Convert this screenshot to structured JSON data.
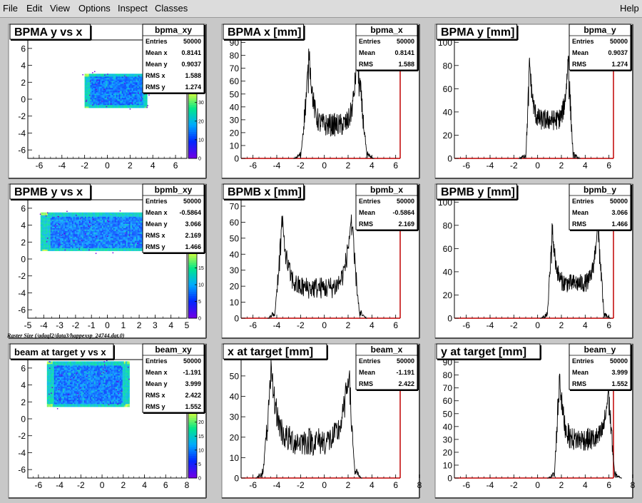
{
  "menu": {
    "items": [
      "File",
      "Edit",
      "View",
      "Options",
      "Inspect",
      "Classes"
    ],
    "help": "Help"
  },
  "caption": "Raster Size (/adaql2/data3/happexsp_24744.dat.0)",
  "colors": {
    "background": "#c8c8c8",
    "axis_red": "#c00000",
    "histogram": "#000000"
  },
  "chart_data": [
    {
      "id": "bpma_xy",
      "type": "heatmap",
      "title": "BPMA y vs x",
      "stats": {
        "name": "bpma_xy",
        "rows": [
          [
            "Entries",
            "50000"
          ],
          [
            "Mean x",
            "0.8141"
          ],
          [
            "Mean y",
            "0.9037"
          ],
          [
            "RMS x",
            "1.588"
          ],
          [
            "RMS y",
            "1.274"
          ]
        ]
      },
      "xlim": [
        -7,
        7
      ],
      "ylim": [
        -7,
        7
      ],
      "xticks": [
        "-6",
        "-4",
        "-2",
        "0",
        "2",
        "4",
        "6"
      ],
      "xtick_values": [
        -6,
        -4,
        -2,
        0,
        2,
        4,
        6
      ],
      "yticks": [
        "-6",
        "-4",
        "-2",
        "0",
        "2",
        "4",
        "6"
      ],
      "ytick_values": [
        -6,
        -4,
        -2,
        0,
        2,
        4,
        6
      ],
      "region": {
        "x": [
          -2.0,
          3.5
        ],
        "y": [
          -1.0,
          3.0
        ]
      },
      "palette": {
        "ticks": [
          "0",
          "10",
          "20",
          "30"
        ],
        "range": [
          0,
          36
        ]
      }
    },
    {
      "id": "bpma_x",
      "type": "line",
      "title": "BPMA x [mm]",
      "stats": {
        "name": "bpma_x",
        "rows": [
          [
            "Entries",
            "50000"
          ],
          [
            "Mean",
            "0.8141"
          ],
          [
            "RMS",
            "1.588"
          ]
        ]
      },
      "xlim": [
        -7,
        8
      ],
      "ylim": [
        0,
        92
      ],
      "xticks": [
        "-6",
        "-4",
        "-2",
        "0",
        "2",
        "4",
        "6"
      ],
      "xtick_values": [
        -6,
        -4,
        -2,
        0,
        2,
        4,
        6
      ],
      "yticks": [
        "0",
        "10",
        "20",
        "30",
        "40",
        "50",
        "60",
        "70",
        "80",
        "90"
      ],
      "ytick_values": [
        0,
        10,
        20,
        30,
        40,
        50,
        60,
        70,
        80,
        90
      ],
      "profile": {
        "lo": -2.0,
        "hi": 3.6,
        "peak_lo": -1.3,
        "peak_hi": 2.8,
        "trough": 26,
        "peak1": 88,
        "peak2": 90,
        "noise": 9
      }
    },
    {
      "id": "bpma_y",
      "type": "line",
      "title": "BPMA y [mm]",
      "stats": {
        "name": "bpma_y",
        "rows": [
          [
            "Entries",
            "50000"
          ],
          [
            "Mean",
            "0.9037"
          ],
          [
            "RMS",
            "1.274"
          ]
        ]
      },
      "xlim": [
        -7,
        8
      ],
      "ylim": [
        0,
        102
      ],
      "xticks": [
        "-6",
        "-4",
        "-2",
        "0",
        "2",
        "4",
        "6"
      ],
      "xtick_values": [
        -6,
        -4,
        -2,
        0,
        2,
        4,
        6
      ],
      "yticks": [
        "0",
        "20",
        "40",
        "60",
        "80",
        "100"
      ],
      "ytick_values": [
        0,
        20,
        40,
        60,
        80,
        100
      ],
      "profile": {
        "lo": -1.0,
        "hi": 3.0,
        "peak_lo": -0.7,
        "peak_hi": 2.6,
        "trough": 33,
        "peak1": 88,
        "peak2": 93,
        "noise": 9
      }
    },
    {
      "id": "bpmb_xy",
      "type": "heatmap",
      "title": "BPMB y vs x",
      "stats": {
        "name": "bpmb_xy",
        "rows": [
          [
            "Entries",
            "50000"
          ],
          [
            "Mean x",
            "-0.5864"
          ],
          [
            "Mean y",
            "3.066"
          ],
          [
            "RMS x",
            "2.169"
          ],
          [
            "RMS y",
            "1.466"
          ]
        ]
      },
      "xlim": [
        -5,
        5
      ],
      "ylim": [
        -7,
        7
      ],
      "xticks": [
        "-5",
        "-4",
        "-3",
        "-2",
        "-1",
        "0",
        "1",
        "2",
        "3",
        "4",
        "5"
      ],
      "xtick_values": [
        -5,
        -4,
        -3,
        -2,
        -1,
        0,
        1,
        2,
        3,
        4,
        5
      ],
      "yticks": [
        "-6",
        "-4",
        "-2",
        "0",
        "2",
        "4",
        "6"
      ],
      "ytick_values": [
        -6,
        -4,
        -2,
        0,
        2,
        4,
        6
      ],
      "region": {
        "x": [
          -4.2,
          3.0
        ],
        "y": [
          1.0,
          5.5
        ]
      },
      "palette": {
        "ticks": [
          "0",
          "5",
          "10",
          "15"
        ],
        "range": [
          0,
          20
        ]
      }
    },
    {
      "id": "bpmb_x",
      "type": "line",
      "title": "BPMB x [mm]",
      "stats": {
        "name": "bpmb_x",
        "rows": [
          [
            "Entries",
            "50000"
          ],
          [
            "Mean",
            "-0.5864"
          ],
          [
            "RMS",
            "2.169"
          ]
        ]
      },
      "xlim": [
        -7,
        8
      ],
      "ylim": [
        0,
        74
      ],
      "xticks": [
        "-6",
        "-4",
        "-2",
        "0",
        "2",
        "4",
        "6"
      ],
      "xtick_values": [
        -6,
        -4,
        -2,
        0,
        2,
        4,
        6
      ],
      "yticks": [
        "0",
        "10",
        "20",
        "30",
        "40",
        "50",
        "60",
        "70"
      ],
      "ytick_values": [
        0,
        10,
        20,
        30,
        40,
        50,
        60,
        70
      ],
      "profile": {
        "lo": -4.2,
        "hi": 3.0,
        "peak_lo": -3.6,
        "peak_hi": 2.3,
        "trough": 19,
        "peak1": 65,
        "peak2": 67,
        "noise": 7
      }
    },
    {
      "id": "bpmb_y",
      "type": "line",
      "title": "BPMB y [mm]",
      "stats": {
        "name": "bpmb_y",
        "rows": [
          [
            "Entries",
            "50000"
          ],
          [
            "Mean",
            "3.066"
          ],
          [
            "RMS",
            "1.466"
          ]
        ]
      },
      "xlim": [
        -7,
        8
      ],
      "ylim": [
        0,
        102
      ],
      "xticks": [
        "-6",
        "-4",
        "-2",
        "0",
        "2",
        "4",
        "6"
      ],
      "xtick_values": [
        -6,
        -4,
        -2,
        0,
        2,
        4,
        6
      ],
      "yticks": [
        "0",
        "20",
        "40",
        "60",
        "80",
        "100"
      ],
      "ytick_values": [
        0,
        20,
        40,
        60,
        80,
        100
      ],
      "profile": {
        "lo": 0.8,
        "hi": 5.6,
        "peak_lo": 1.2,
        "peak_hi": 5.1,
        "trough": 30,
        "peak1": 83,
        "peak2": 95,
        "noise": 8
      }
    },
    {
      "id": "beam_xy",
      "type": "heatmap",
      "title": "beam at target y vs x",
      "stats": {
        "name": "beam_xy",
        "rows": [
          [
            "Entries",
            "50000"
          ],
          [
            "Mean x",
            "-1.191"
          ],
          [
            "Mean y",
            "3.999"
          ],
          [
            "RMS x",
            "2.422"
          ],
          [
            "RMS y",
            "1.552"
          ]
        ]
      },
      "xlim": [
        -7,
        8
      ],
      "ylim": [
        -7,
        7
      ],
      "xticks": [
        "-6",
        "-4",
        "-2",
        "0",
        "2",
        "4",
        "6",
        "8"
      ],
      "xtick_values": [
        -6,
        -4,
        -2,
        0,
        2,
        4,
        6,
        8
      ],
      "yticks": [
        "-6",
        "-4",
        "-2",
        "0",
        "2",
        "4",
        "6"
      ],
      "ytick_values": [
        -6,
        -4,
        -2,
        0,
        2,
        4,
        6
      ],
      "region": {
        "x": [
          -5.2,
          2.5
        ],
        "y": [
          1.5,
          6.8
        ]
      },
      "palette": {
        "ticks": [
          "0",
          "5",
          "10",
          "15",
          "20"
        ],
        "range": [
          0,
          24
        ]
      }
    },
    {
      "id": "beam_x",
      "type": "line",
      "title": "x at target [mm]",
      "stats": {
        "name": "beam_x",
        "rows": [
          [
            "Entries",
            "50000"
          ],
          [
            "Mean",
            "-1.191"
          ],
          [
            "RMS",
            "2.422"
          ]
        ]
      },
      "xlim": [
        -7,
        8
      ],
      "ylim": [
        0,
        58
      ],
      "xticks": [
        "-6",
        "-4",
        "-2",
        "0",
        "2",
        "4",
        "6",
        "8"
      ],
      "xtick_values": [
        -6,
        -4,
        -2,
        0,
        2,
        4,
        6,
        8
      ],
      "yticks": [
        "0",
        "10",
        "20",
        "30",
        "40",
        "50"
      ],
      "ytick_values": [
        0,
        10,
        20,
        30,
        40,
        50
      ],
      "profile": {
        "lo": -5.2,
        "hi": 2.6,
        "peak_lo": -4.5,
        "peak_hi": 2.1,
        "trough": 18,
        "peak1": 55,
        "peak2": 56,
        "noise": 7
      }
    },
    {
      "id": "beam_y",
      "type": "line",
      "title": "y at target [mm]",
      "stats": {
        "name": "beam_y",
        "rows": [
          [
            "Entries",
            "50000"
          ],
          [
            "Mean",
            "3.999"
          ],
          [
            "RMS",
            "1.552"
          ]
        ]
      },
      "xlim": [
        -7,
        8
      ],
      "ylim": [
        0,
        92
      ],
      "xticks": [
        "-6",
        "-4",
        "-2",
        "0",
        "2",
        "4",
        "6",
        "8"
      ],
      "xtick_values": [
        -6,
        -4,
        -2,
        0,
        2,
        4,
        6,
        8
      ],
      "yticks": [
        "0",
        "10",
        "20",
        "30",
        "40",
        "50",
        "60",
        "70",
        "80",
        "90"
      ],
      "ytick_values": [
        0,
        10,
        20,
        30,
        40,
        50,
        60,
        70,
        80,
        90
      ],
      "profile": {
        "lo": 1.4,
        "hi": 6.5,
        "peak_lo": 1.8,
        "peak_hi": 6.0,
        "trough": 30,
        "peak1": 87,
        "peak2": 75,
        "noise": 9
      }
    }
  ]
}
